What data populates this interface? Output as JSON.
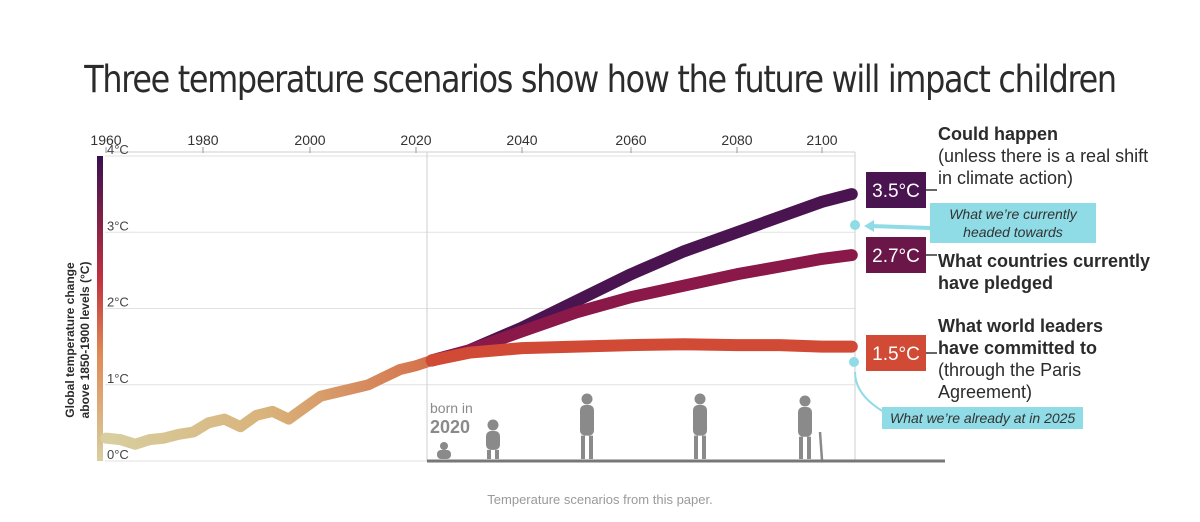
{
  "title": "Three temperature scenarios show how the future will impact children",
  "source_note": "Temperature scenarios from this paper.",
  "chart_data": {
    "type": "line",
    "x_ticks": [
      "1960",
      "1980",
      "2000",
      "2020",
      "2040",
      "2060",
      "2080",
      "2100"
    ],
    "y_ticks": [
      "0°C",
      "1°C",
      "2°C",
      "3°C",
      "4°C"
    ],
    "xlim": [
      1960,
      2100
    ],
    "ylim": [
      0,
      4
    ],
    "ylabel_line1": "Global temperature change",
    "ylabel_line2": "above 1850-1900 levels (°C)",
    "historical": {
      "x": [
        1960,
        1963,
        1966,
        1969,
        1972,
        1975,
        1978,
        1981,
        1984,
        1987,
        1990,
        1993,
        1996,
        1999,
        2002,
        2005,
        2008,
        2011,
        2014,
        2017,
        2020,
        2023
      ],
      "y": [
        0.3,
        0.28,
        0.22,
        0.28,
        0.3,
        0.35,
        0.38,
        0.5,
        0.55,
        0.45,
        0.6,
        0.65,
        0.55,
        0.7,
        0.85,
        0.9,
        0.95,
        1.0,
        1.1,
        1.2,
        1.25,
        1.32
      ]
    },
    "series": [
      {
        "name": "Could happen",
        "label": "3.5°C",
        "color": "#4a1450",
        "x": [
          2023,
          2030,
          2040,
          2050,
          2060,
          2070,
          2080,
          2090,
          2100,
          2107
        ],
        "y": [
          1.32,
          1.45,
          1.75,
          2.1,
          2.45,
          2.75,
          3.0,
          3.2,
          3.4,
          3.5
        ]
      },
      {
        "name": "What countries currently have pledged",
        "label": "2.7°C",
        "color": "#8a1848",
        "x": [
          2023,
          2030,
          2040,
          2050,
          2060,
          2070,
          2080,
          2090,
          2100,
          2107
        ],
        "y": [
          1.32,
          1.45,
          1.7,
          1.95,
          2.15,
          2.3,
          2.45,
          2.55,
          2.65,
          2.7
        ]
      },
      {
        "name": "What world leaders have committed to",
        "label": "1.5°C",
        "color": "#d04a36",
        "x": [
          2023,
          2030,
          2040,
          2050,
          2060,
          2070,
          2080,
          2090,
          2100,
          2107
        ],
        "y": [
          1.32,
          1.42,
          1.48,
          1.5,
          1.52,
          1.53,
          1.52,
          1.52,
          1.5,
          1.5
        ]
      }
    ],
    "born_label_line1": "born in",
    "born_label_line2": "2020"
  },
  "annotations": {
    "top_bold": "Could happen",
    "top_norm": "(unless there is a real shift in climate action)",
    "mid_bold": "What countries currently have pledged",
    "low_bold": "What world leaders have committed to",
    "low_norm": "(through the Paris Agreement)",
    "callout_heading": "What we’re currently headed towards",
    "callout_current": "What we’re already at in 2025"
  },
  "colors": {
    "teal": "#8fdbe6",
    "badge_dark": "#4a1450",
    "badge_mid": "#6b1648",
    "badge_low": "#d04a36"
  }
}
